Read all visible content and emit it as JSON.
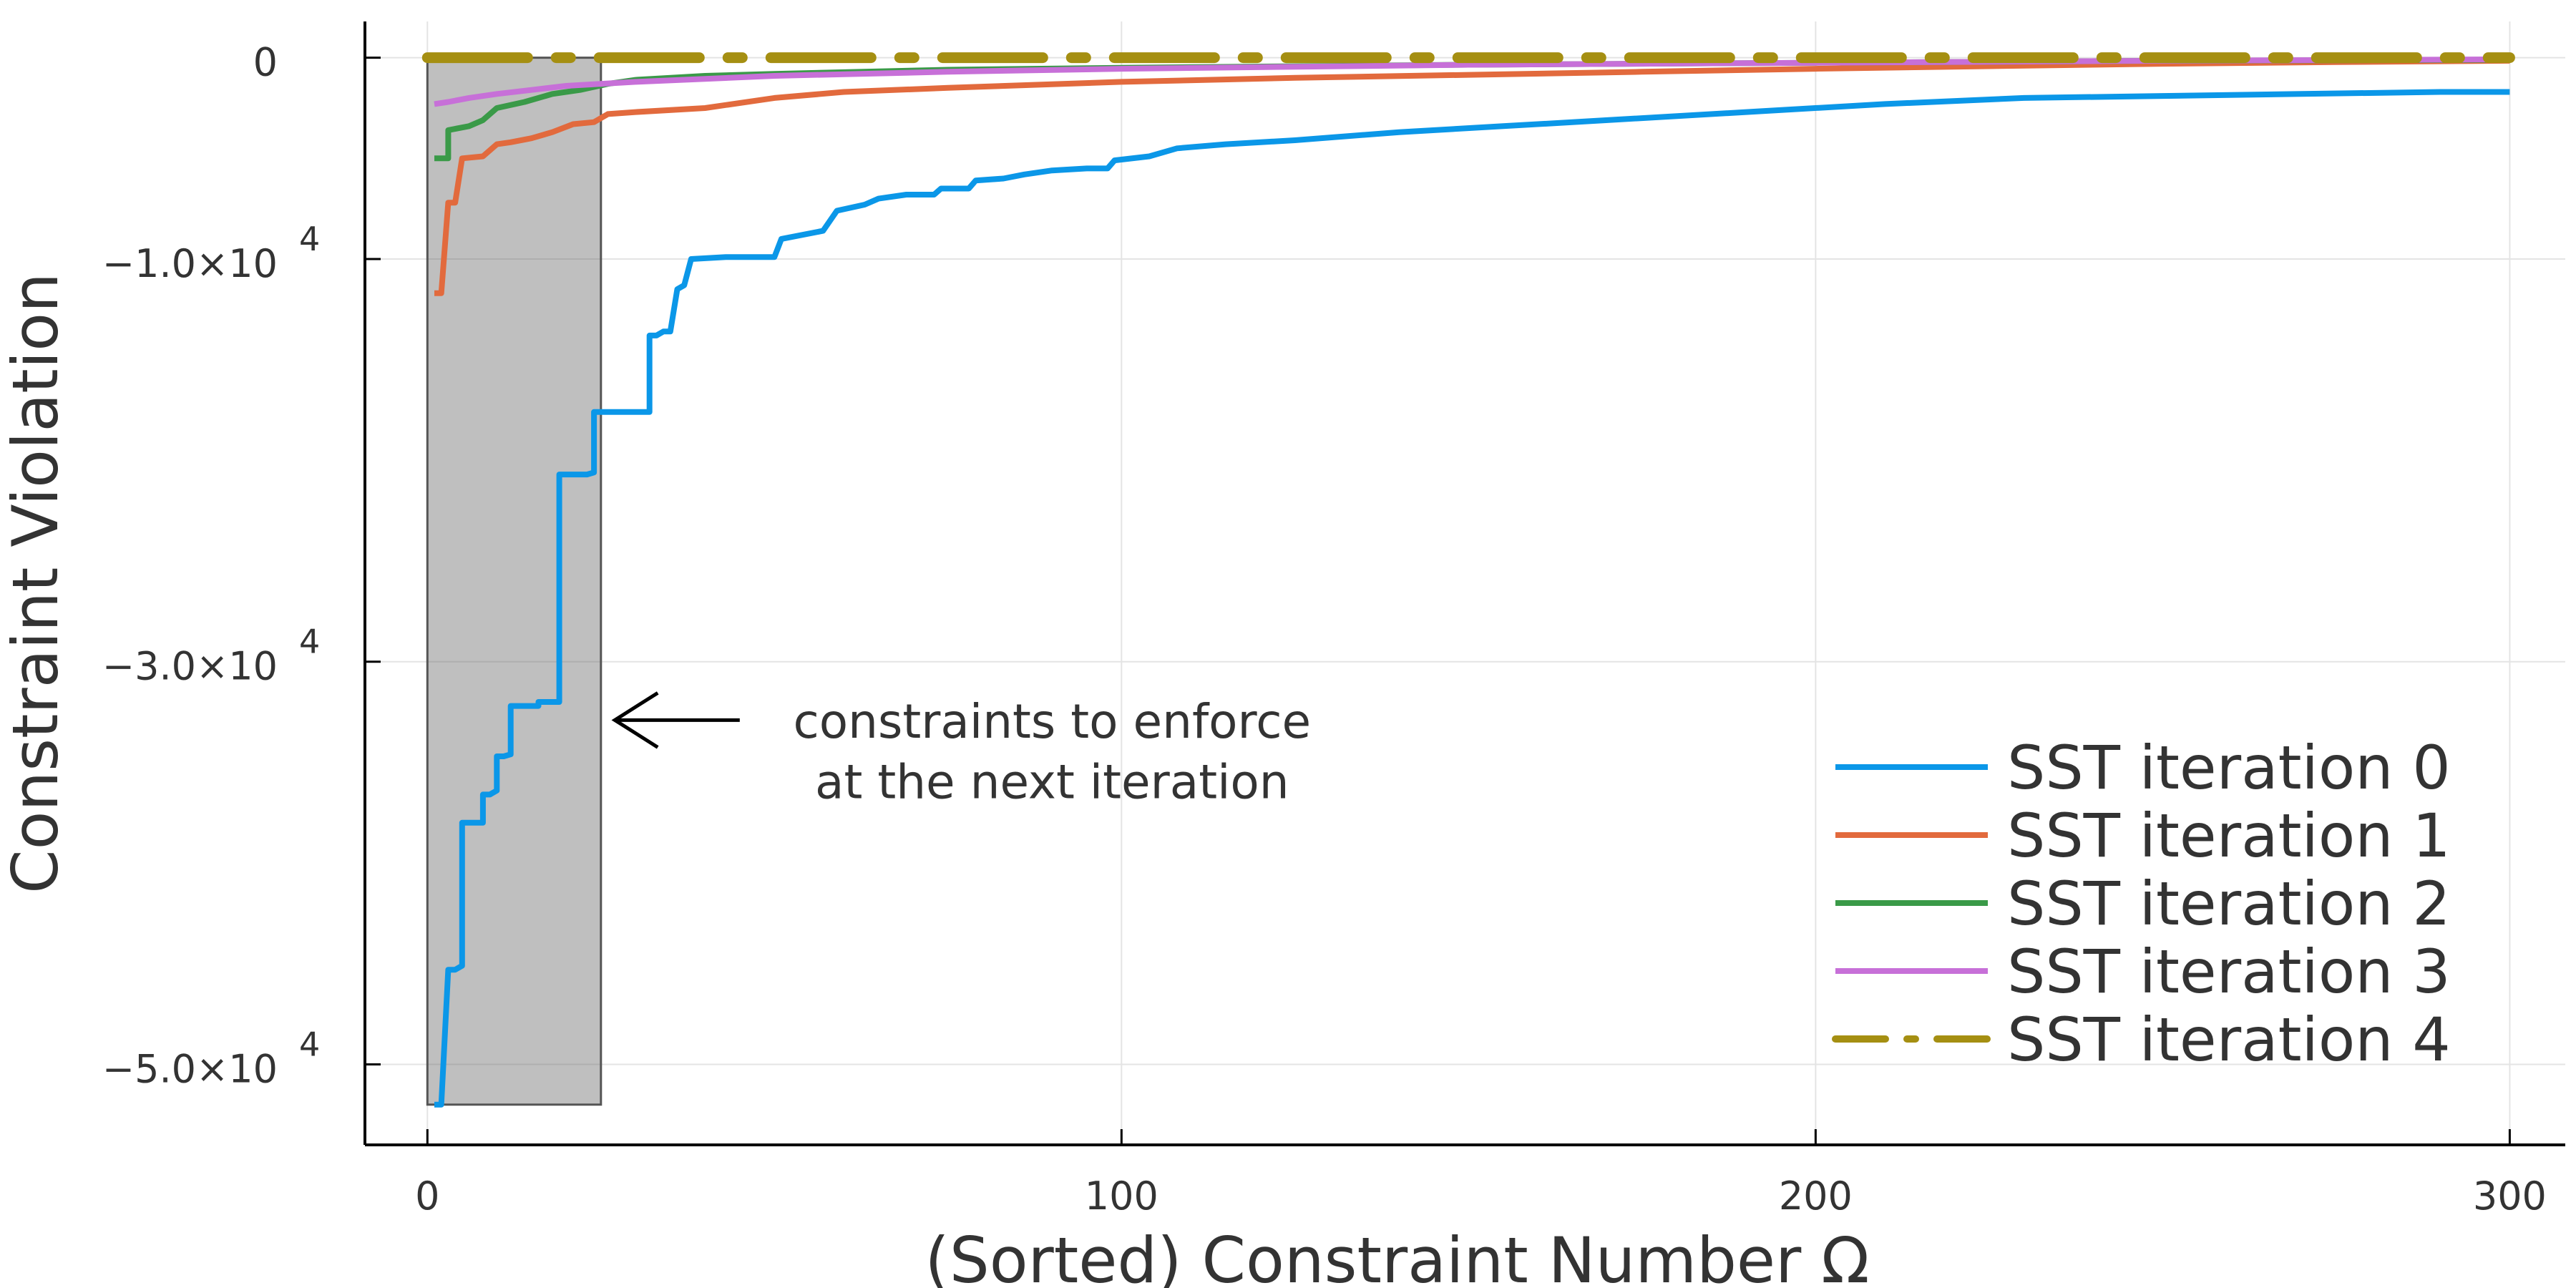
{
  "chart_data": {
    "type": "line",
    "title": "",
    "xlabel": "(Sorted) Constraint Number Ω",
    "ylabel": "Constraint Violation",
    "xlim": [
      -9,
      308
    ],
    "ylim": [
      -54000,
      1800
    ],
    "grid": true,
    "legend_position": "bottom-right",
    "x_ticks": [
      {
        "value": 0,
        "label": "0"
      },
      {
        "value": 100,
        "label": "100"
      },
      {
        "value": 200,
        "label": "200"
      },
      {
        "value": 300,
        "label": "300"
      }
    ],
    "y_ticks": [
      {
        "value": 0,
        "label": "0",
        "exp": ""
      },
      {
        "value": -10000,
        "label": "−1.0×10",
        "exp": "4"
      },
      {
        "value": -30000,
        "label": "−3.0×10",
        "exp": "4"
      },
      {
        "value": -50000,
        "label": "−5.0×10",
        "exp": "4"
      }
    ],
    "series": [
      {
        "name": "SST iteration 0",
        "color": "#0b97e8",
        "dash": "solid",
        "points": [
          [
            1,
            -52000
          ],
          [
            2,
            -52000
          ],
          [
            3,
            -45300
          ],
          [
            4,
            -45300
          ],
          [
            5,
            -45100
          ],
          [
            5,
            -38000
          ],
          [
            6,
            -38000
          ],
          [
            8,
            -38000
          ],
          [
            8,
            -36600
          ],
          [
            9,
            -36600
          ],
          [
            10,
            -36400
          ],
          [
            10,
            -34700
          ],
          [
            11,
            -34700
          ],
          [
            12,
            -34600
          ],
          [
            12,
            -32200
          ],
          [
            16,
            -32200
          ],
          [
            16,
            -32000
          ],
          [
            19,
            -32000
          ],
          [
            19,
            -20700
          ],
          [
            23,
            -20700
          ],
          [
            24,
            -20600
          ],
          [
            24,
            -17600
          ],
          [
            32,
            -17600
          ],
          [
            32,
            -13800
          ],
          [
            33,
            -13800
          ],
          [
            34,
            -13600
          ],
          [
            35,
            -13600
          ],
          [
            36,
            -11500
          ],
          [
            37,
            -11300
          ],
          [
            38,
            -10000
          ],
          [
            43,
            -9900
          ],
          [
            50,
            -9900
          ],
          [
            51,
            -9000
          ],
          [
            57,
            -8600
          ],
          [
            59,
            -7600
          ],
          [
            63,
            -7300
          ],
          [
            65,
            -7000
          ],
          [
            69,
            -6800
          ],
          [
            73,
            -6800
          ],
          [
            74,
            -6500
          ],
          [
            78,
            -6500
          ],
          [
            79,
            -6100
          ],
          [
            83,
            -6000
          ],
          [
            86,
            -5800
          ],
          [
            90,
            -5600
          ],
          [
            95,
            -5500
          ],
          [
            98,
            -5500
          ],
          [
            99,
            -5100
          ],
          [
            104,
            -4900
          ],
          [
            108,
            -4500
          ],
          [
            115,
            -4300
          ],
          [
            125,
            -4100
          ],
          [
            140,
            -3700
          ],
          [
            155,
            -3400
          ],
          [
            170,
            -3100
          ],
          [
            190,
            -2700
          ],
          [
            210,
            -2300
          ],
          [
            230,
            -2000
          ],
          [
            250,
            -1900
          ],
          [
            270,
            -1800
          ],
          [
            290,
            -1700
          ],
          [
            300,
            -1700
          ]
        ]
      },
      {
        "name": "SST iteration 1",
        "color": "#e26a3d",
        "dash": "solid",
        "points": [
          [
            1,
            -11700
          ],
          [
            2,
            -11700
          ],
          [
            3,
            -7200
          ],
          [
            4,
            -7200
          ],
          [
            5,
            -5000
          ],
          [
            8,
            -4900
          ],
          [
            10,
            -4300
          ],
          [
            12,
            -4200
          ],
          [
            15,
            -4000
          ],
          [
            18,
            -3700
          ],
          [
            21,
            -3300
          ],
          [
            24,
            -3200
          ],
          [
            26,
            -2800
          ],
          [
            30,
            -2700
          ],
          [
            40,
            -2500
          ],
          [
            50,
            -2000
          ],
          [
            60,
            -1700
          ],
          [
            75,
            -1500
          ],
          [
            100,
            -1200
          ],
          [
            125,
            -1000
          ],
          [
            150,
            -850
          ],
          [
            175,
            -700
          ],
          [
            200,
            -550
          ],
          [
            225,
            -420
          ],
          [
            250,
            -300
          ],
          [
            275,
            -220
          ],
          [
            300,
            -150
          ]
        ]
      },
      {
        "name": "SST iteration 2",
        "color": "#3a9a48",
        "dash": "solid",
        "points": [
          [
            1,
            -5000
          ],
          [
            3,
            -5000
          ],
          [
            3,
            -3600
          ],
          [
            6,
            -3400
          ],
          [
            8,
            -3100
          ],
          [
            10,
            -2500
          ],
          [
            14,
            -2200
          ],
          [
            18,
            -1800
          ],
          [
            22,
            -1600
          ],
          [
            26,
            -1300
          ],
          [
            30,
            -1100
          ],
          [
            40,
            -900
          ],
          [
            50,
            -800
          ],
          [
            75,
            -600
          ],
          [
            100,
            -500
          ],
          [
            150,
            -350
          ],
          [
            200,
            -250
          ],
          [
            250,
            -150
          ],
          [
            300,
            -100
          ]
        ]
      },
      {
        "name": "SST iteration 3",
        "color": "#c770d8",
        "dash": "solid",
        "points": [
          [
            1,
            -2300
          ],
          [
            3,
            -2200
          ],
          [
            6,
            -2000
          ],
          [
            10,
            -1800
          ],
          [
            15,
            -1600
          ],
          [
            20,
            -1400
          ],
          [
            30,
            -1200
          ],
          [
            50,
            -900
          ],
          [
            75,
            -700
          ],
          [
            100,
            -550
          ],
          [
            150,
            -350
          ],
          [
            200,
            -250
          ],
          [
            250,
            -150
          ],
          [
            300,
            -80
          ]
        ]
      },
      {
        "name": "SST iteration 4",
        "color": "#a58f12",
        "dash": "dashdot",
        "points": [
          [
            0,
            0
          ],
          [
            300,
            0
          ]
        ]
      }
    ],
    "highlight": {
      "x0": 0,
      "x1": 25,
      "y0": -52000,
      "y1": 0,
      "color": "#666666",
      "opacity": 0.42
    },
    "annotation": {
      "lines": [
        "constraints to enforce",
        "at the next iteration"
      ],
      "arrow_from": [
        45,
        -32900
      ],
      "arrow_to": [
        27,
        -32900
      ],
      "text_x": 90,
      "text_y": [
        -33000,
        -36000
      ]
    }
  }
}
